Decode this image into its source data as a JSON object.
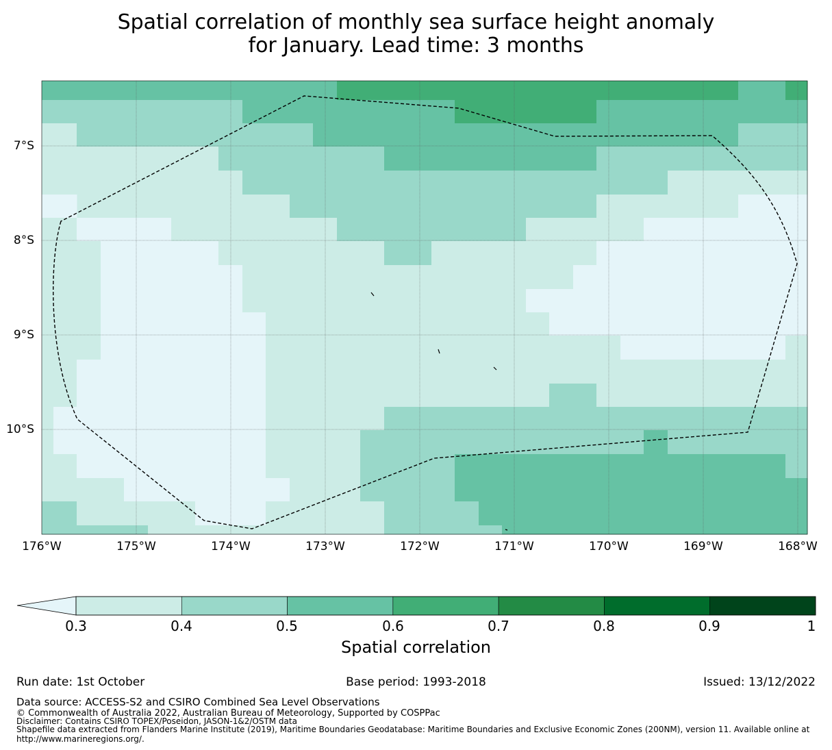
{
  "title": {
    "line1": "Spatial correlation of monthly sea surface height anomaly",
    "line2": "for January. Lead time: 3 months"
  },
  "map": {
    "latitude_labels": [
      "7°S",
      "8°S",
      "9°S",
      "10°S"
    ],
    "longitude_labels": [
      "176°W",
      "175°W",
      "174°W",
      "173°W",
      "172°W",
      "171°W",
      "170°W",
      "169°W",
      "168°W"
    ],
    "extent": {
      "lon_min": -176,
      "lon_max": -167.9,
      "lat_min": -11.2,
      "lat_max": -6.45
    },
    "boundary_style": "dashed black line (maritime boundary / EEZ)",
    "correlation_band_grid_note": "each cell value = colour band index (0: <0.3, 1: 0.3–0.4, 2: 0.4–0.5, 3: 0.5–0.6, 4: 0.6–0.7)"
  },
  "colorbar": {
    "title": "Spatial correlation",
    "tick_labels": [
      "0.3",
      "0.4",
      "0.5",
      "0.6",
      "0.7",
      "0.8",
      "0.9",
      "1"
    ],
    "colors": [
      "#e5f5f9",
      "#ccece6",
      "#99d8c9",
      "#66c2a4",
      "#41ae76",
      "#238b45",
      "#006d2c",
      "#00441b"
    ]
  },
  "footer": {
    "run_date": "Run date: 1st October",
    "base_period": "Base period: 1993-2018",
    "issued": "Issued: 13/12/2022",
    "data_source": "Data source: ACCESS-S2 and CSIRO Combined Sea Level Observations",
    "copyright": "© Commonwealth of Australia 2022, Australian Bureau of Meteorology, Supported by COSPPac",
    "disclaimer": "Disclaimer: Contains CSIRO TOPEX/Poseidon, JASON-1&2/OSTM data",
    "shapefile": "Shapefile data extracted from Flanders Marine Institute (2019), Maritime Boundaries Geodatabase: Maritime Boundaries and Exclusive Economic Zones (200NM), version 11. Available online at http://www.marineregions.org/."
  }
}
